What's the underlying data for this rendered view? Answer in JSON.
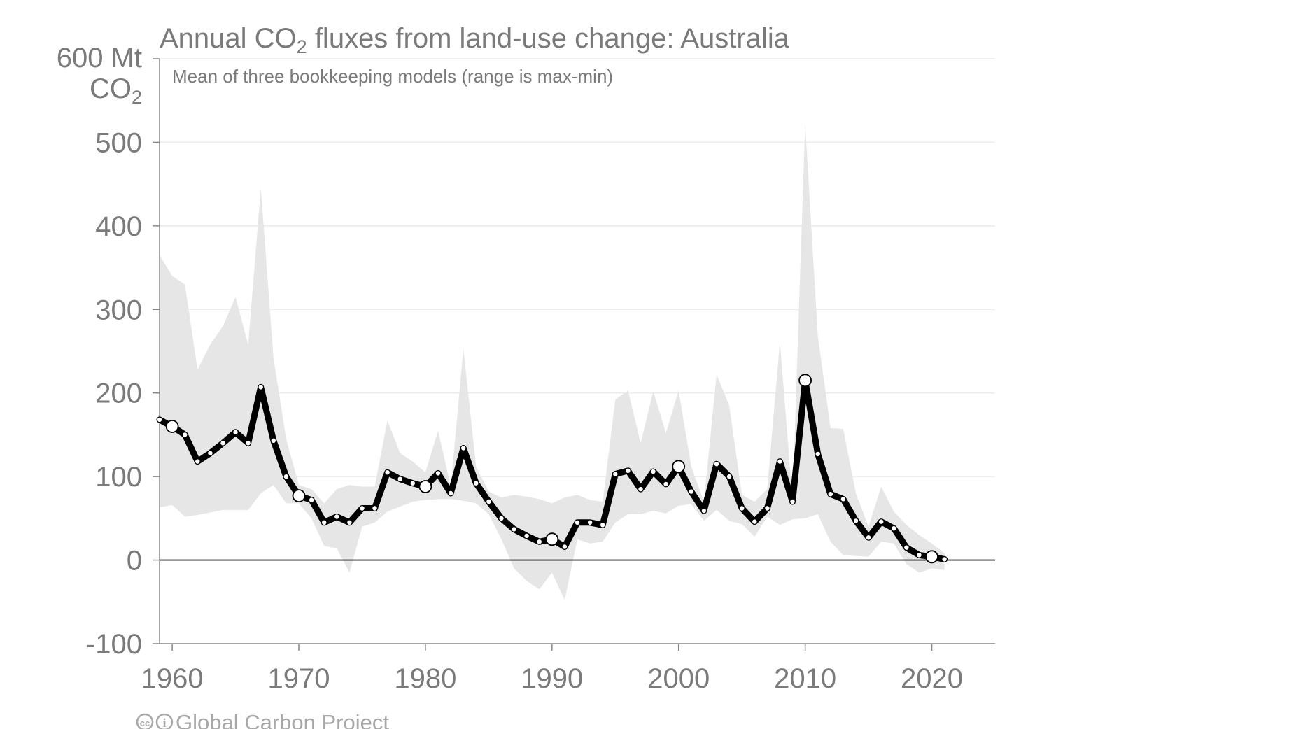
{
  "chart_data": {
    "type": "line",
    "title": "Annual CO",
    "title_sub": "2",
    "title_suffix": " fluxes from land-use change: Australia",
    "subtitle": "Mean of three bookkeeping models (range is max-min)",
    "ylabel_top": "600 Mt",
    "ylabel_unit": "CO",
    "ylabel_unit_sub": "2",
    "xlabel": "",
    "xlim": [
      1959,
      2025
    ],
    "ylim": [
      -100,
      600
    ],
    "x_ticks": [
      "1960",
      "1970",
      "1980",
      "1990",
      "2000",
      "2010",
      "2020"
    ],
    "y_ticks": [
      "-100",
      "0",
      "100",
      "200",
      "300",
      "400",
      "500"
    ],
    "grid": true,
    "legend": "none",
    "highlight_years": [
      1960,
      1970,
      1980,
      1990,
      2000,
      2010,
      2020
    ],
    "colors": {
      "line": "#000000",
      "band": "#e6e6e6",
      "grid": "#ececec",
      "axis": "#888888",
      "zero_line": "#333333",
      "text": "#7a7a7a"
    },
    "series": [
      {
        "kind": "mean",
        "x": [
          1959,
          1960,
          1961,
          1962,
          1963,
          1964,
          1965,
          1966,
          1967,
          1968,
          1969,
          1970,
          1971,
          1972,
          1973,
          1974,
          1975,
          1976,
          1977,
          1978,
          1979,
          1980,
          1981,
          1982,
          1983,
          1984,
          1985,
          1986,
          1987,
          1988,
          1989,
          1990,
          1991,
          1992,
          1993,
          1994,
          1995,
          1996,
          1997,
          1998,
          1999,
          2000,
          2001,
          2002,
          2003,
          2004,
          2005,
          2006,
          2007,
          2008,
          2009,
          2010,
          2011,
          2012,
          2013,
          2014,
          2015,
          2016,
          2017,
          2018,
          2019,
          2020,
          2021
        ],
        "values": [
          168,
          160,
          150,
          118,
          128,
          140,
          153,
          140,
          207,
          143,
          100,
          77,
          72,
          45,
          52,
          45,
          62,
          62,
          105,
          97,
          92,
          88,
          104,
          80,
          134,
          92,
          70,
          50,
          37,
          29,
          22,
          25,
          16,
          45,
          45,
          42,
          103,
          107,
          85,
          106,
          91,
          112,
          82,
          59,
          115,
          100,
          62,
          46,
          62,
          118,
          70,
          215,
          127,
          79,
          73,
          47,
          27,
          46,
          38,
          15,
          6,
          4,
          1
        ]
      },
      {
        "kind": "range_max",
        "x": [
          1959,
          1960,
          1961,
          1962,
          1963,
          1964,
          1965,
          1966,
          1967,
          1968,
          1969,
          1970,
          1971,
          1972,
          1973,
          1974,
          1975,
          1976,
          1977,
          1978,
          1979,
          1980,
          1981,
          1982,
          1983,
          1984,
          1985,
          1986,
          1987,
          1988,
          1989,
          1990,
          1991,
          1992,
          1993,
          1994,
          1995,
          1996,
          1997,
          1998,
          1999,
          2000,
          2001,
          2002,
          2003,
          2004,
          2005,
          2006,
          2007,
          2008,
          2009,
          2010,
          2011,
          2012,
          2013,
          2014,
          2015,
          2016,
          2017,
          2018,
          2019,
          2020,
          2021
        ],
        "values": [
          365,
          340,
          330,
          228,
          258,
          280,
          315,
          258,
          445,
          242,
          145,
          90,
          85,
          68,
          85,
          90,
          88,
          88,
          167,
          128,
          118,
          105,
          155,
          88,
          253,
          112,
          82,
          75,
          78,
          76,
          73,
          68,
          75,
          78,
          72,
          70,
          192,
          203,
          140,
          202,
          152,
          203,
          112,
          70,
          222,
          185,
          78,
          70,
          85,
          262,
          72,
          522,
          268,
          158,
          157,
          80,
          40,
          88,
          58,
          42,
          30,
          20,
          8
        ]
      },
      {
        "kind": "range_min",
        "x": [
          1959,
          1960,
          1961,
          1962,
          1963,
          1964,
          1965,
          1966,
          1967,
          1968,
          1969,
          1970,
          1971,
          1972,
          1973,
          1974,
          1975,
          1976,
          1977,
          1978,
          1979,
          1980,
          1981,
          1982,
          1983,
          1984,
          1985,
          1986,
          1987,
          1988,
          1989,
          1990,
          1991,
          1992,
          1993,
          1994,
          1995,
          1996,
          1997,
          1998,
          1999,
          2000,
          2001,
          2002,
          2003,
          2004,
          2005,
          2006,
          2007,
          2008,
          2009,
          2010,
          2011,
          2012,
          2013,
          2014,
          2015,
          2016,
          2017,
          2018,
          2019,
          2020,
          2021
        ],
        "values": [
          63,
          66,
          52,
          54,
          57,
          60,
          60,
          60,
          80,
          90,
          68,
          68,
          50,
          17,
          14,
          -15,
          40,
          45,
          58,
          64,
          70,
          72,
          73,
          73,
          71,
          68,
          55,
          25,
          -10,
          -25,
          -35,
          -15,
          -48,
          25,
          20,
          22,
          45,
          55,
          55,
          59,
          56,
          65,
          67,
          47,
          60,
          47,
          43,
          28,
          52,
          42,
          49,
          50,
          55,
          22,
          6,
          5,
          4,
          22,
          20,
          -5,
          -15,
          -10,
          -12
        ]
      }
    ]
  },
  "credit": {
    "cc_icon": "cc",
    "by_icon": "i",
    "text": "Global Carbon Project"
  }
}
